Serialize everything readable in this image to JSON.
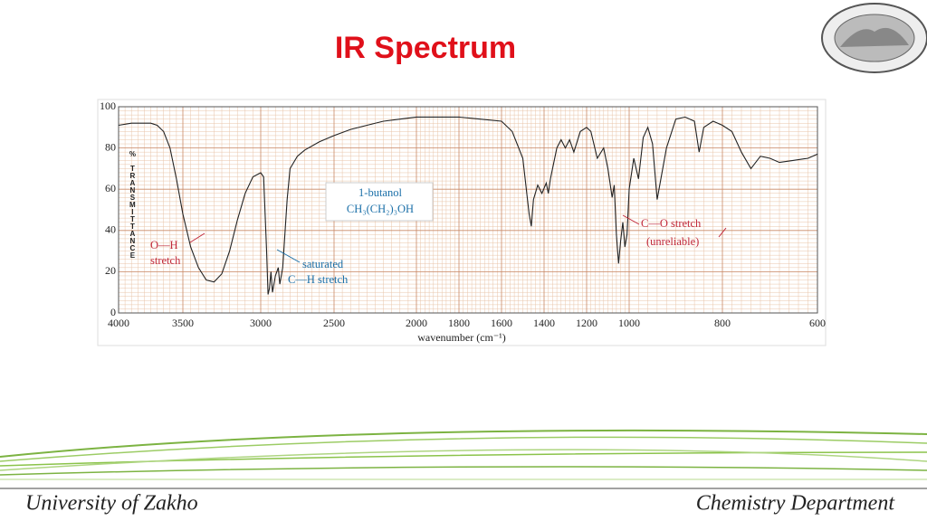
{
  "chart_data": {
    "type": "line",
    "title": "IR Spectrum",
    "x": [
      4000,
      3900,
      3750,
      3700,
      3650,
      3600,
      3550,
      3500,
      3450,
      3400,
      3350,
      3300,
      3250,
      3200,
      3150,
      3100,
      3050,
      3000,
      2980,
      2960,
      2950,
      2940,
      2930,
      2920,
      2900,
      2880,
      2870,
      2850,
      2820,
      2800,
      2750,
      2700,
      2600,
      2500,
      2400,
      2300,
      2200,
      2100,
      2000,
      1900,
      1800,
      1700,
      1600,
      1550,
      1500,
      1470,
      1460,
      1450,
      1430,
      1410,
      1390,
      1380,
      1370,
      1340,
      1320,
      1300,
      1280,
      1260,
      1230,
      1200,
      1180,
      1150,
      1120,
      1100,
      1080,
      1070,
      1060,
      1050,
      1040,
      1030,
      1020,
      1010,
      1000,
      990,
      980,
      970,
      960,
      950,
      940,
      920,
      900,
      880,
      860,
      850,
      840,
      820,
      800,
      780,
      760,
      740,
      720,
      700,
      680,
      650,
      620,
      600
    ],
    "values": [
      91,
      92,
      92,
      91,
      88,
      80,
      65,
      48,
      32,
      22,
      16,
      15,
      19,
      30,
      45,
      58,
      66,
      68,
      66,
      30,
      9,
      12,
      20,
      10,
      18,
      22,
      14,
      22,
      55,
      70,
      76,
      79,
      83,
      86,
      89,
      91,
      93,
      94,
      95,
      95,
      95,
      94,
      93,
      88,
      75,
      48,
      42,
      55,
      62,
      58,
      63,
      58,
      65,
      80,
      84,
      80,
      84,
      78,
      88,
      90,
      88,
      75,
      80,
      70,
      56,
      62,
      38,
      24,
      35,
      44,
      32,
      38,
      60,
      75,
      65,
      85,
      90,
      82,
      55,
      80,
      94,
      95,
      93,
      78,
      90,
      93,
      91,
      88,
      78,
      70,
      76,
      75,
      73,
      74,
      75,
      77
    ],
    "color": "#222222",
    "xlim": [
      4000,
      600
    ],
    "xticks": [
      4000,
      3500,
      3000,
      2500,
      2000,
      1800,
      1600,
      1400,
      1200,
      1000,
      800,
      600
    ],
    "ylim": [
      0,
      100
    ],
    "yticks": [
      0,
      20,
      40,
      60,
      80,
      100
    ],
    "grid": true,
    "xlabel": "wavenumber (cm⁻¹)",
    "ylabel": "% TRANSMITTANCE",
    "annotations": [
      {
        "text": "1-butanol",
        "color": "#1a6fa8"
      },
      {
        "text": "CH₃(CH₂)₃OH",
        "color": "#1a6fa8"
      },
      {
        "text": "O—H",
        "color": "#c0283a"
      },
      {
        "text": "stretch",
        "color": "#c0283a"
      },
      {
        "text": "saturated",
        "color": "#1a6fa8"
      },
      {
        "text": "C—H stretch",
        "color": "#1a6fa8"
      },
      {
        "text": "C—O stretch",
        "color": "#c0283a"
      },
      {
        "text": "(unreliable)",
        "color": "#c0283a"
      }
    ]
  },
  "footer": {
    "left": "University of Zakho",
    "right": "Chemistry Department"
  }
}
